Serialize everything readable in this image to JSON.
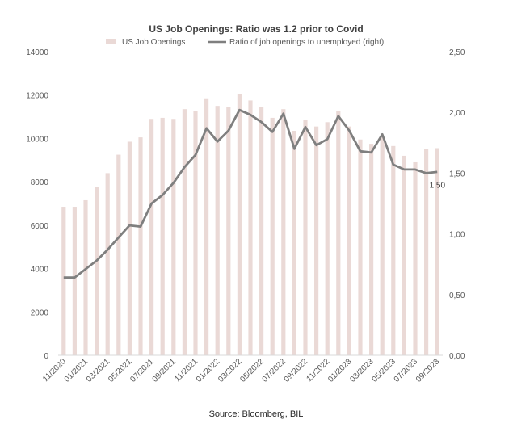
{
  "chart_data": {
    "type": "bar+line",
    "title": "US Job Openings: Ratio was 1.2 prior to Covid",
    "source": "Source: Bloomberg, BIL",
    "x": [
      "11/2020",
      "12/2020",
      "01/2021",
      "02/2021",
      "03/2021",
      "04/2021",
      "05/2021",
      "06/2021",
      "07/2021",
      "08/2021",
      "09/2021",
      "10/2021",
      "11/2021",
      "12/2021",
      "01/2022",
      "02/2022",
      "03/2022",
      "04/2022",
      "05/2022",
      "06/2022",
      "07/2022",
      "08/2022",
      "09/2022",
      "10/2022",
      "11/2022",
      "12/2022",
      "01/2023",
      "02/2023",
      "03/2023",
      "04/2023",
      "05/2023",
      "06/2023",
      "07/2023",
      "08/2023",
      "09/2023"
    ],
    "x_tick_labels": [
      "11/2020",
      "01/2021",
      "03/2021",
      "05/2021",
      "07/2021",
      "09/2021",
      "11/2021",
      "01/2022",
      "03/2022",
      "05/2022",
      "07/2022",
      "09/2022",
      "11/2022",
      "01/2023",
      "03/2023",
      "05/2023",
      "07/2023",
      "09/2023"
    ],
    "series": [
      {
        "name": "US Job Openings",
        "type": "bar",
        "axis": "left",
        "color": "#ead9d6",
        "values": [
          6850,
          6850,
          7150,
          7750,
          8400,
          9250,
          9850,
          10050,
          10900,
          10950,
          10900,
          11350,
          11250,
          11850,
          11500,
          11450,
          12050,
          11750,
          11450,
          10950,
          11350,
          10350,
          10850,
          10550,
          10750,
          11250,
          10550,
          9950,
          9750,
          10050,
          9650,
          9200,
          8900,
          9500,
          9550
        ]
      },
      {
        "name": "Ratio of job openings to unemployed (right)",
        "type": "line",
        "axis": "right",
        "color": "#7f7f7f",
        "values": [
          0.64,
          0.64,
          0.71,
          0.78,
          0.87,
          0.97,
          1.07,
          1.06,
          1.25,
          1.32,
          1.42,
          1.55,
          1.65,
          1.87,
          1.76,
          1.85,
          2.02,
          1.98,
          1.92,
          1.84,
          1.99,
          1.7,
          1.88,
          1.73,
          1.78,
          1.97,
          1.85,
          1.68,
          1.67,
          1.82,
          1.57,
          1.53,
          1.53,
          1.5,
          1.51
        ]
      }
    ],
    "y_left": {
      "min": 0,
      "max": 14000,
      "ticks": [
        "0",
        "2000",
        "4000",
        "6000",
        "8000",
        "10000",
        "12000",
        "14000"
      ]
    },
    "y_right": {
      "min": 0,
      "max": 2.5,
      "ticks": [
        "0,00",
        "0,50",
        "1,00",
        "1,50",
        "2,00",
        "2,50"
      ]
    },
    "annotation": {
      "text": "1,50",
      "at_index": 33
    },
    "grid": false,
    "legend_position": "top"
  }
}
